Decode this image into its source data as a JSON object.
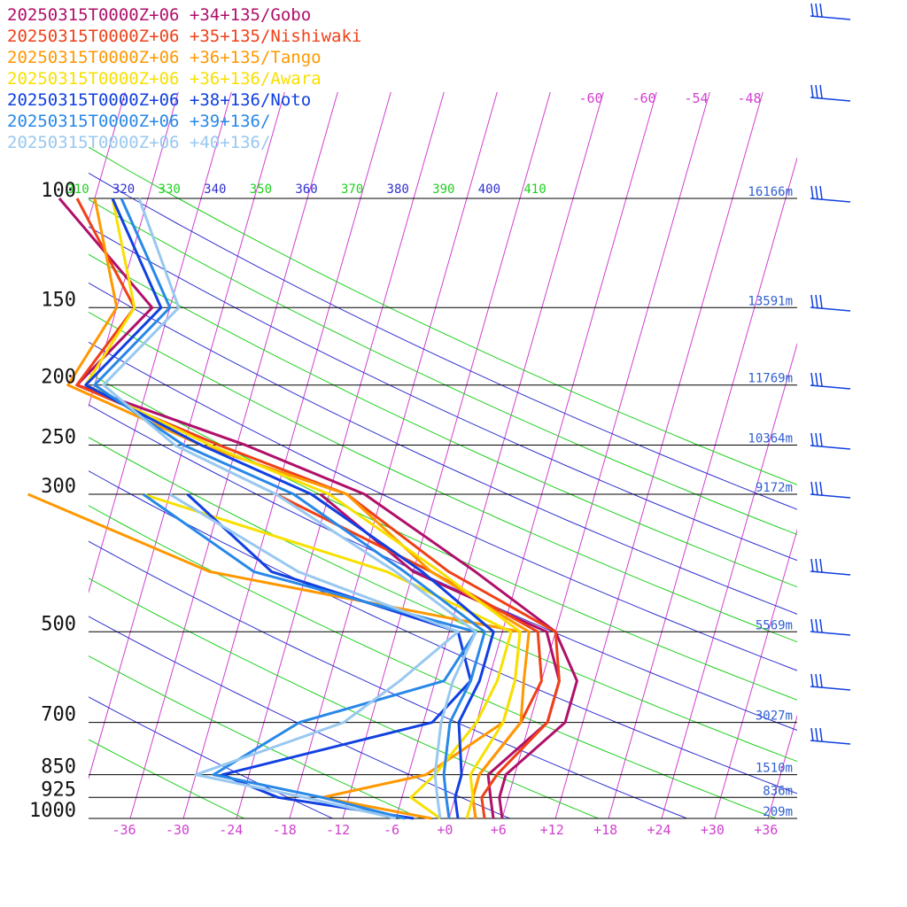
{
  "chart_data": {
    "type": "line",
    "chart_kind": "skew-T log-P sounding",
    "legend_placement": "top-left",
    "x_axis": {
      "ticks": [
        "-36",
        "-30",
        "-24",
        "-18",
        "-12",
        "-6",
        "+0",
        "+6",
        "+12",
        "+18",
        "+24",
        "+30",
        "+36"
      ],
      "range": [
        -40,
        40
      ],
      "color": "#d040d0"
    },
    "y_axis": {
      "scale": "log",
      "ticks": [
        100,
        150,
        200,
        250,
        300,
        500,
        700,
        850,
        925,
        1000
      ],
      "range": [
        100,
        1000
      ]
    },
    "height_labels": [
      {
        "p": 100,
        "label": "16166m"
      },
      {
        "p": 150,
        "label": "13591m"
      },
      {
        "p": 200,
        "label": "11769m"
      },
      {
        "p": 250,
        "label": "10364m"
      },
      {
        "p": 300,
        "label": "9172m"
      },
      {
        "p": 500,
        "label": "5569m"
      },
      {
        "p": 700,
        "label": "3027m"
      },
      {
        "p": 850,
        "label": "1510m"
      },
      {
        "p": 925,
        "label": "836m"
      },
      {
        "p": 1000,
        "label": "209m"
      }
    ],
    "isotherm_labels": [
      "-60",
      "-60",
      "-54",
      "-48"
    ],
    "theta_labels": [
      {
        "text": "310",
        "color": "#20d020"
      },
      {
        "text": "320",
        "color": "#3030d0"
      },
      {
        "text": "330",
        "color": "#20d020"
      },
      {
        "text": "340",
        "color": "#3030d0"
      },
      {
        "text": "350",
        "color": "#20d020"
      },
      {
        "text": "360",
        "color": "#3030d0"
      },
      {
        "text": "370",
        "color": "#20d020"
      },
      {
        "text": "380",
        "color": "#3030d0"
      },
      {
        "text": "390",
        "color": "#20d020"
      },
      {
        "text": "400",
        "color": "#3030d0"
      },
      {
        "text": "410",
        "color": "#20d020"
      }
    ],
    "series": [
      {
        "name": "20250315T0000Z+06 +34+135/Gobo",
        "color": "#b0106a",
        "temp": [
          [
            1000,
            6
          ],
          [
            925,
            5
          ],
          [
            850,
            5
          ],
          [
            700,
            10
          ],
          [
            600,
            10
          ],
          [
            500,
            6
          ],
          [
            400,
            -5
          ],
          [
            300,
            -20
          ],
          [
            250,
            -35
          ],
          [
            200,
            -56
          ],
          [
            150,
            -50
          ],
          [
            100,
            -64
          ]
        ],
        "dew": [
          [
            1000,
            5
          ],
          [
            925,
            4
          ],
          [
            850,
            3
          ],
          [
            700,
            8
          ],
          [
            600,
            8
          ],
          [
            500,
            5
          ],
          [
            400,
            -12
          ],
          [
            300,
            -25
          ]
        ]
      },
      {
        "name": "20250315T0000Z+06 +35+135/Nishiwaki",
        "color": "#f04018",
        "temp": [
          [
            1000,
            4
          ],
          [
            925,
            3
          ],
          [
            850,
            4
          ],
          [
            700,
            8
          ],
          [
            600,
            8
          ],
          [
            500,
            6
          ],
          [
            400,
            -8
          ],
          [
            300,
            -22
          ],
          [
            250,
            -38
          ],
          [
            200,
            -56
          ],
          [
            150,
            -52
          ],
          [
            100,
            -62
          ]
        ],
        "dew": [
          [
            1000,
            3
          ],
          [
            925,
            2
          ],
          [
            850,
            2
          ],
          [
            700,
            5
          ],
          [
            600,
            6
          ],
          [
            500,
            4
          ],
          [
            400,
            -10
          ],
          [
            300,
            -30
          ]
        ]
      },
      {
        "name": "20250315T0000Z+06 +36+135/Tango",
        "color": "#ff9800",
        "temp": [
          [
            1000,
            3
          ],
          [
            925,
            2
          ],
          [
            850,
            2
          ],
          [
            700,
            5
          ],
          [
            600,
            4
          ],
          [
            500,
            3
          ],
          [
            400,
            -10
          ],
          [
            300,
            -22
          ],
          [
            250,
            -40
          ],
          [
            200,
            -57
          ],
          [
            150,
            -54
          ],
          [
            100,
            -60
          ]
        ],
        "dew": [
          [
            1000,
            -2
          ],
          [
            925,
            -15
          ],
          [
            850,
            -4
          ],
          [
            700,
            3
          ],
          [
            600,
            3
          ],
          [
            500,
            2
          ],
          [
            400,
            -35
          ],
          [
            300,
            -58
          ]
        ]
      },
      {
        "name": "20250315T0000Z+06 +36+136/Awara",
        "color": "#f8e000",
        "temp": [
          [
            1000,
            2
          ],
          [
            925,
            2
          ],
          [
            850,
            1
          ],
          [
            700,
            3
          ],
          [
            600,
            3
          ],
          [
            500,
            2
          ],
          [
            400,
            -9
          ],
          [
            300,
            -24
          ],
          [
            250,
            -39
          ],
          [
            200,
            -55
          ],
          [
            150,
            -52
          ],
          [
            100,
            -58
          ]
        ],
        "dew": [
          [
            1000,
            -1
          ],
          [
            925,
            -5
          ],
          [
            850,
            -3
          ],
          [
            700,
            0
          ],
          [
            600,
            1
          ],
          [
            500,
            1
          ],
          [
            400,
            -15
          ],
          [
            300,
            -45
          ]
        ]
      },
      {
        "name": "20250315T0000Z+06 +38+136/Noto",
        "color": "#1040e0",
        "temp": [
          [
            1000,
            1
          ],
          [
            925,
            0
          ],
          [
            850,
            0
          ],
          [
            700,
            -2
          ],
          [
            600,
            -1
          ],
          [
            500,
            -1
          ],
          [
            400,
            -11
          ],
          [
            300,
            -26
          ],
          [
            250,
            -40
          ],
          [
            200,
            -55
          ],
          [
            150,
            -49
          ],
          [
            100,
            -58
          ]
        ],
        "dew": [
          [
            1000,
            -4
          ],
          [
            925,
            -20
          ],
          [
            850,
            -27
          ],
          [
            700,
            -5
          ],
          [
            600,
            -2
          ],
          [
            500,
            -5
          ],
          [
            400,
            -28
          ],
          [
            300,
            -40
          ]
        ]
      },
      {
        "name": "20250315T0000Z+06 +39+136/",
        "color": "#2888e8",
        "temp": [
          [
            1000,
            0
          ],
          [
            925,
            -1
          ],
          [
            850,
            -2
          ],
          [
            700,
            -3
          ],
          [
            600,
            -2
          ],
          [
            500,
            -2
          ],
          [
            400,
            -13
          ],
          [
            300,
            -28
          ],
          [
            250,
            -42
          ],
          [
            200,
            -54
          ],
          [
            150,
            -48
          ],
          [
            100,
            -57
          ]
        ],
        "dew": [
          [
            1000,
            -5
          ],
          [
            925,
            -15
          ],
          [
            850,
            -28
          ],
          [
            700,
            -20
          ],
          [
            600,
            -5
          ],
          [
            500,
            -3
          ],
          [
            400,
            -30
          ],
          [
            300,
            -45
          ]
        ]
      },
      {
        "name": "20250315T0000Z+06 +40+136/",
        "color": "#98c8f0",
        "temp": [
          [
            1000,
            -1
          ],
          [
            925,
            -2
          ],
          [
            850,
            -3
          ],
          [
            700,
            -4
          ],
          [
            600,
            -4
          ],
          [
            500,
            -3
          ],
          [
            400,
            -14
          ],
          [
            300,
            -30
          ],
          [
            250,
            -43
          ],
          [
            200,
            -53
          ],
          [
            150,
            -47
          ],
          [
            100,
            -55
          ]
        ],
        "dew": [
          [
            1000,
            -6
          ],
          [
            925,
            -17
          ],
          [
            850,
            -30
          ],
          [
            700,
            -15
          ],
          [
            600,
            -10
          ],
          [
            500,
            -5
          ],
          [
            400,
            -25
          ],
          [
            300,
            -42
          ]
        ]
      }
    ]
  }
}
